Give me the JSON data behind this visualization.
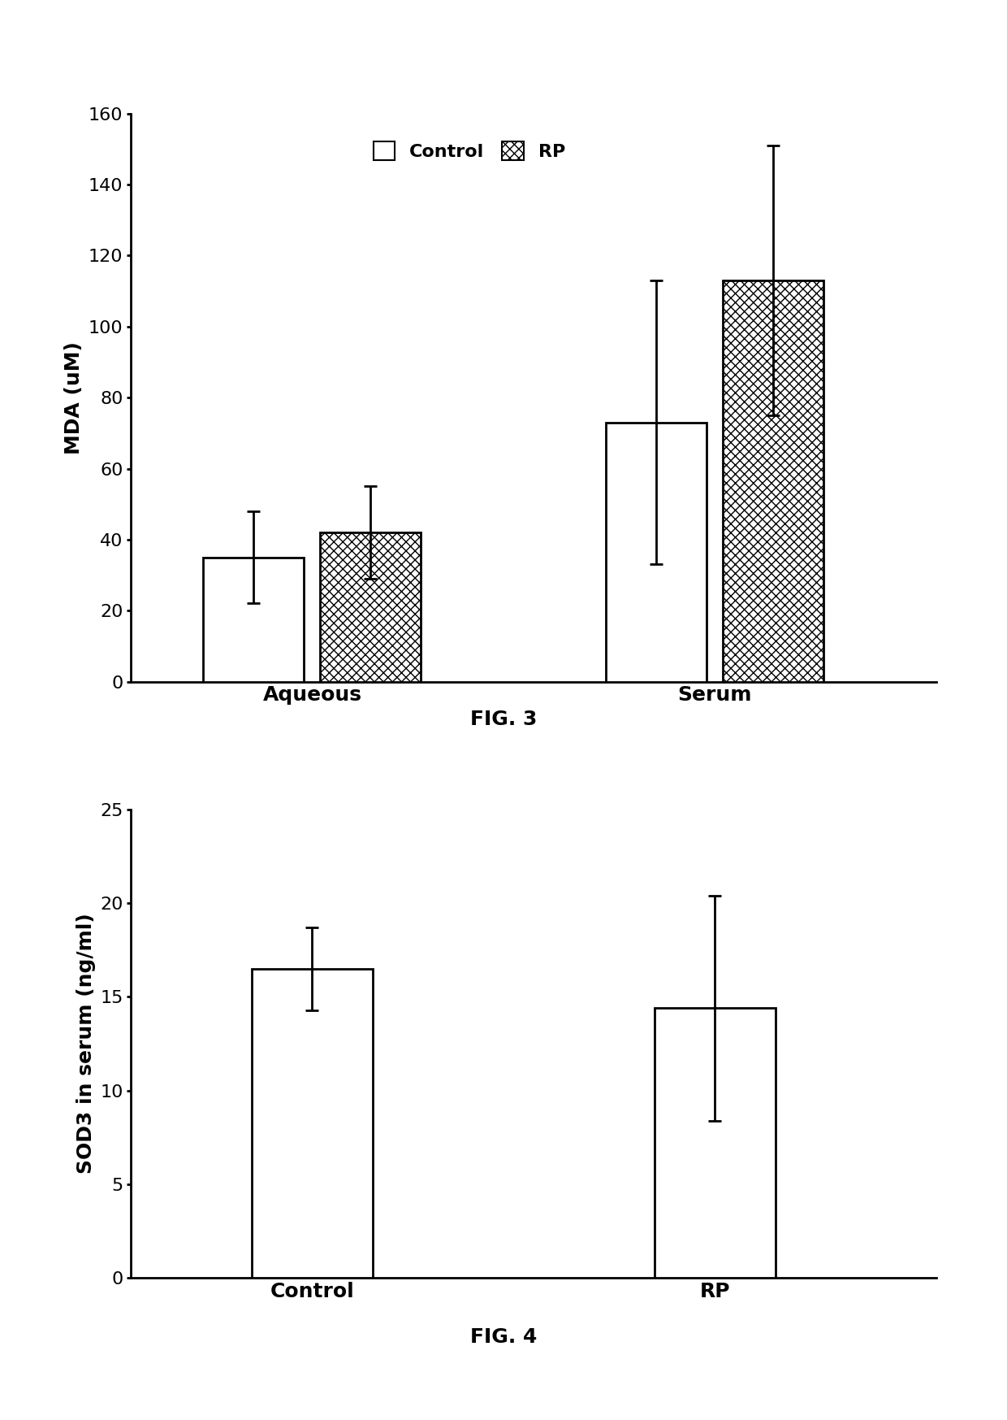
{
  "fig3": {
    "groups": [
      "Aqueous",
      "Serum"
    ],
    "bar_values": {
      "Control": [
        35,
        73
      ],
      "RP": [
        42,
        113
      ]
    },
    "error_up": {
      "Control": [
        13,
        40
      ],
      "RP": [
        13,
        38
      ]
    },
    "error_down": {
      "Control": [
        13,
        40
      ],
      "RP": [
        13,
        38
      ]
    },
    "ylabel": "MDA (uM)",
    "ylim": [
      0,
      160
    ],
    "yticks": [
      0,
      20,
      40,
      60,
      80,
      100,
      120,
      140,
      160
    ],
    "legend_labels": [
      "Control",
      "RP"
    ],
    "fig_label": "FIG. 3"
  },
  "fig4": {
    "categories": [
      "Control",
      "RP"
    ],
    "values": [
      16.5,
      14.4
    ],
    "errors_up": [
      2.2,
      6.0
    ],
    "errors_down": [
      2.2,
      6.0
    ],
    "ylabel": "SOD3 in serum (ng/ml)",
    "ylim": [
      0,
      25
    ],
    "yticks": [
      0,
      5,
      10,
      15,
      20,
      25
    ],
    "fig_label": "FIG. 4"
  },
  "bar_width": 0.25,
  "hatch_pattern": "xxx",
  "face_color_control": "#ffffff",
  "face_color_rp": "#ffffff",
  "edge_color": "#000000",
  "font_size_labels": 18,
  "font_size_ticks": 16,
  "font_size_legend": 16,
  "font_size_fig_label": 18,
  "background_color": "#ffffff"
}
